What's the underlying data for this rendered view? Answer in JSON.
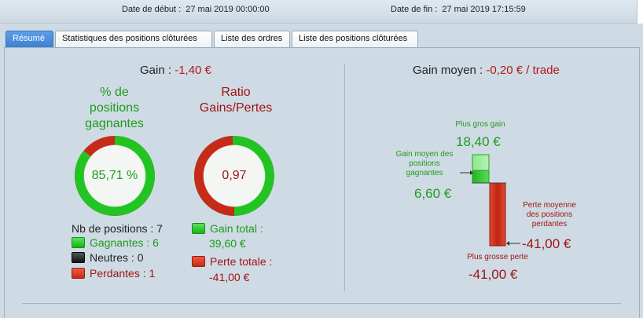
{
  "header": {
    "start_label": "Date de début :",
    "start_value": "27 mai 2019 00:00:00",
    "end_label": "Date de fin :",
    "end_value": "27 mai 2019 17:15:59"
  },
  "tabs": [
    {
      "label": "Résumé",
      "active": true
    },
    {
      "label": "Statistiques des positions clôturées",
      "active": false
    },
    {
      "label": "Liste des ordres",
      "active": false
    },
    {
      "label": "Liste des positions clôturées",
      "active": false
    }
  ],
  "summary": {
    "gain_label": "Gain :",
    "gain_value": "-1,40 €",
    "win_title": "% de positions gagnantes",
    "win_title_lines": [
      "% de",
      "positions",
      "gagnantes"
    ],
    "win_pct_text": "85,71 %",
    "win_fraction": 0.8571,
    "ratio_title_lines": [
      "Ratio",
      "Gains/Pertes"
    ],
    "ratio_text": "0,97",
    "ratio_fraction": 0.4924,
    "nb_positions": "Nb de positions : 7",
    "gagnantes": "Gagnantes : 6",
    "neutres": "Neutres : 0",
    "perdantes": "Perdantes : 1",
    "gain_total_label": "Gain total :",
    "gain_total_value": "39,60 €",
    "perte_totale_label": "Perte totale :",
    "perte_totale_value": "-41,00 €"
  },
  "average": {
    "label": "Gain moyen :",
    "value": "-0,20 € / trade",
    "plus_gros_gain_label": "Plus gros gain",
    "plus_gros_gain_value": "18,40 €",
    "gain_moyen_label_lines": [
      "Gain moyen des",
      "positions",
      "gagnantes"
    ],
    "gain_moyen_value": "6,60 €",
    "perte_moyenne_label_lines": [
      "Perte moyenne",
      "des positions",
      "perdantes"
    ],
    "perte_moyenne_value": "-41,00 €",
    "plus_grosse_perte_label": "Plus grosse perte",
    "plus_grosse_perte_value": "-41,00 €"
  },
  "colors": {
    "green": "#1e9a1e",
    "red": "#a01414",
    "accent_tab": "#3a7fd3"
  }
}
